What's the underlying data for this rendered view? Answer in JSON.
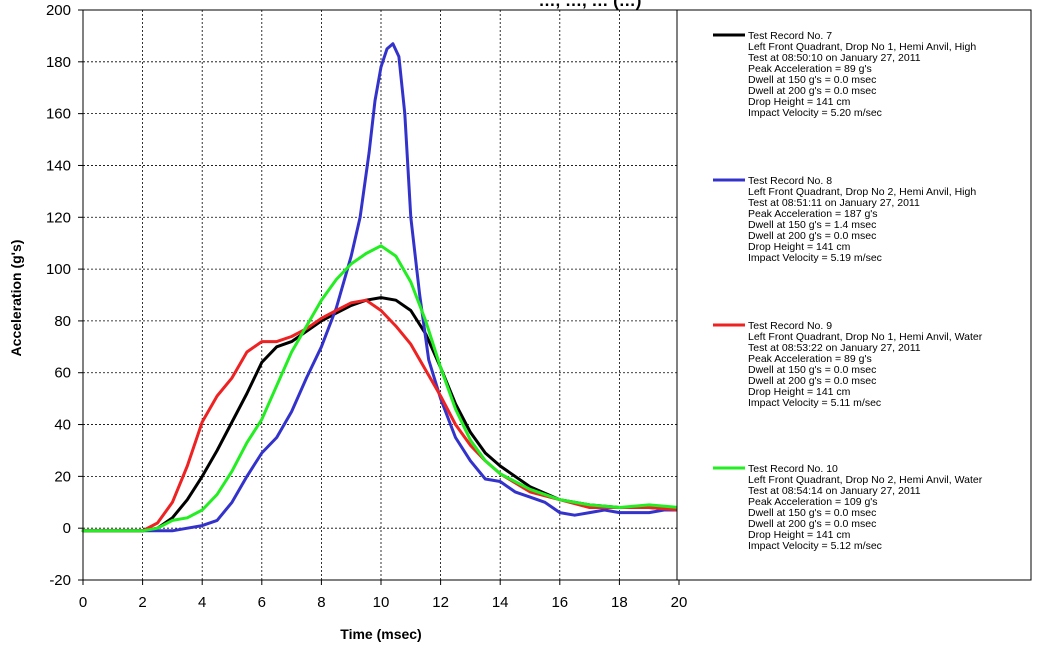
{
  "chart_data": {
    "type": "line",
    "title": "…, …, … (…)",
    "xlabel": "Time (msec)",
    "ylabel": "Acceleration (g's)",
    "xlim": [
      0,
      20
    ],
    "ylim": [
      -20,
      200
    ],
    "x_ticks": [
      "0",
      "2",
      "4",
      "6",
      "8",
      "10",
      "12",
      "14",
      "16",
      "18",
      "20"
    ],
    "y_ticks": [
      "-20",
      "0",
      "20",
      "40",
      "60",
      "80",
      "100",
      "120",
      "140",
      "160",
      "180",
      "200"
    ],
    "grid": true,
    "legend_position": "right",
    "series": [
      {
        "name": "Test Record No. 7",
        "color": "#000000",
        "legend_lines": [
          "Left Front Quadrant, Drop No 1, Hemi Anvil, High",
          "Test at 08:50:10 on January 27, 2011",
          "Peak Acceleration = 89 g's",
          "Dwell at 150 g's = 0.0 msec",
          "Dwell at 200 g's = 0.0 msec",
          "Drop Height = 141 cm",
          "Impact Velocity = 5.20 m/sec"
        ],
        "points": [
          [
            0,
            -1
          ],
          [
            1,
            -1
          ],
          [
            2,
            -1
          ],
          [
            2.5,
            0
          ],
          [
            3,
            4
          ],
          [
            3.5,
            11
          ],
          [
            4,
            20
          ],
          [
            4.5,
            30
          ],
          [
            5,
            41
          ],
          [
            5.5,
            52
          ],
          [
            6,
            64
          ],
          [
            6.5,
            70
          ],
          [
            7,
            72
          ],
          [
            7.5,
            76
          ],
          [
            8,
            80
          ],
          [
            8.5,
            83
          ],
          [
            9,
            86
          ],
          [
            9.5,
            88
          ],
          [
            10,
            89
          ],
          [
            10.5,
            88
          ],
          [
            11,
            84
          ],
          [
            11.5,
            75
          ],
          [
            12,
            62
          ],
          [
            12.5,
            48
          ],
          [
            13,
            37
          ],
          [
            13.5,
            29
          ],
          [
            14,
            24
          ],
          [
            15,
            16
          ],
          [
            16,
            11
          ],
          [
            17,
            9
          ],
          [
            18,
            8
          ],
          [
            19,
            8
          ],
          [
            20,
            7
          ]
        ]
      },
      {
        "name": "Test Record No. 8",
        "color": "#3333cc",
        "legend_lines": [
          "Left Front Quadrant, Drop No 2, Hemi Anvil, High",
          "Test at 08:51:11 on January 27, 2011",
          "Peak Acceleration = 187 g's",
          "Dwell at 150 g's = 1.4 msec",
          "Dwell at 200 g's = 0.0 msec",
          "Drop Height = 141 cm",
          "Impact Velocity = 5.19 m/sec"
        ],
        "points": [
          [
            0,
            -1
          ],
          [
            1,
            -1
          ],
          [
            2,
            -1
          ],
          [
            3,
            -1
          ],
          [
            3.5,
            0
          ],
          [
            4,
            1
          ],
          [
            4.5,
            3
          ],
          [
            5,
            10
          ],
          [
            5.5,
            20
          ],
          [
            6,
            29
          ],
          [
            6.5,
            35
          ],
          [
            7,
            45
          ],
          [
            7.5,
            58
          ],
          [
            8,
            70
          ],
          [
            8.5,
            85
          ],
          [
            9,
            105
          ],
          [
            9.3,
            120
          ],
          [
            9.6,
            145
          ],
          [
            9.8,
            165
          ],
          [
            10,
            178
          ],
          [
            10.2,
            185
          ],
          [
            10.4,
            187
          ],
          [
            10.6,
            182
          ],
          [
            10.8,
            160
          ],
          [
            11,
            120
          ],
          [
            11.3,
            90
          ],
          [
            11.6,
            65
          ],
          [
            12,
            50
          ],
          [
            12.5,
            35
          ],
          [
            13,
            26
          ],
          [
            13.5,
            19
          ],
          [
            14,
            18
          ],
          [
            14.5,
            14
          ],
          [
            15,
            12
          ],
          [
            15.5,
            10
          ],
          [
            16,
            6
          ],
          [
            16.5,
            5
          ],
          [
            17,
            6
          ],
          [
            17.5,
            7
          ],
          [
            18,
            6
          ],
          [
            18.5,
            6
          ],
          [
            19,
            6
          ],
          [
            19.5,
            7
          ],
          [
            20,
            7
          ]
        ]
      },
      {
        "name": "Test Record No. 9",
        "color": "#ee2222",
        "legend_lines": [
          "Left Front Quadrant, Drop No 1, Hemi Anvil, Water",
          "Test at 08:53:22 on January 27, 2011",
          "Peak Acceleration = 89 g's",
          "Dwell at 150 g's = 0.0 msec",
          "Dwell at 200 g's = 0.0 msec",
          "Drop Height = 141 cm",
          "Impact Velocity = 5.11 m/sec"
        ],
        "points": [
          [
            0,
            -1
          ],
          [
            1,
            -1
          ],
          [
            2,
            -1
          ],
          [
            2.5,
            2
          ],
          [
            3,
            10
          ],
          [
            3.5,
            24
          ],
          [
            4,
            41
          ],
          [
            4.5,
            51
          ],
          [
            5,
            58
          ],
          [
            5.5,
            68
          ],
          [
            6,
            72
          ],
          [
            6.5,
            72
          ],
          [
            7,
            74
          ],
          [
            7.5,
            77
          ],
          [
            8,
            81
          ],
          [
            8.5,
            84
          ],
          [
            9,
            87
          ],
          [
            9.5,
            88
          ],
          [
            10,
            84
          ],
          [
            10.5,
            78
          ],
          [
            11,
            71
          ],
          [
            11.5,
            61
          ],
          [
            12,
            51
          ],
          [
            12.5,
            40
          ],
          [
            13,
            32
          ],
          [
            13.5,
            26
          ],
          [
            14,
            21
          ],
          [
            15,
            14
          ],
          [
            16,
            11
          ],
          [
            17,
            8
          ],
          [
            18,
            8
          ],
          [
            19,
            8
          ],
          [
            20,
            7
          ]
        ]
      },
      {
        "name": "Test Record No. 10",
        "color": "#22ee22",
        "legend_lines": [
          "Left Front Quadrant, Drop No 2, Hemi Anvil, Water",
          "Test at 08:54:14 on January 27, 2011",
          "Peak Acceleration = 109 g's",
          "Dwell at 150 g's = 0.0 msec",
          "Dwell at 200 g's = 0.0 msec",
          "Drop Height = 141 cm",
          "Impact Velocity = 5.12 m/sec"
        ],
        "points": [
          [
            0,
            -1
          ],
          [
            1,
            -1
          ],
          [
            2,
            -1
          ],
          [
            2.5,
            0
          ],
          [
            3,
            3
          ],
          [
            3.5,
            4
          ],
          [
            4,
            7
          ],
          [
            4.5,
            13
          ],
          [
            5,
            22
          ],
          [
            5.5,
            33
          ],
          [
            6,
            42
          ],
          [
            6.5,
            55
          ],
          [
            7,
            68
          ],
          [
            7.5,
            78
          ],
          [
            8,
            88
          ],
          [
            8.5,
            96
          ],
          [
            9,
            102
          ],
          [
            9.5,
            106
          ],
          [
            10,
            109
          ],
          [
            10.5,
            105
          ],
          [
            11,
            95
          ],
          [
            11.5,
            80
          ],
          [
            12,
            62
          ],
          [
            12.5,
            46
          ],
          [
            13,
            34
          ],
          [
            13.5,
            26
          ],
          [
            14,
            21
          ],
          [
            15,
            15
          ],
          [
            16,
            11
          ],
          [
            17,
            9
          ],
          [
            18,
            8
          ],
          [
            19,
            9
          ],
          [
            20,
            8
          ]
        ]
      }
    ]
  }
}
